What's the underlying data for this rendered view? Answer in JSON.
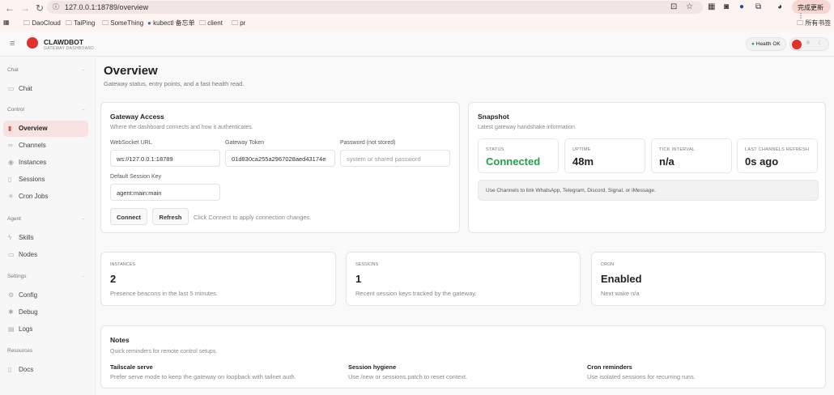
{
  "browser": {
    "url": "127.0.0.1:18789/overview",
    "update_label": "完成更新",
    "bookmarks": [
      "DaoCloud",
      "TaiPing",
      "SomeThing",
      "kubectl 备忘单",
      "client",
      "pr"
    ],
    "all_bookmarks": "所有书签"
  },
  "app": {
    "name": "CLAWDBOT",
    "tagline": "GATEWAY DASHBOARD",
    "health_label": "Health",
    "health_value": "OK",
    "health_color": "#22a34a",
    "accent": "#e0312a"
  },
  "sidebar": {
    "sections": [
      {
        "title": "Chat",
        "items": [
          {
            "label": "Chat",
            "icon": "message-icon"
          }
        ]
      },
      {
        "title": "Control",
        "items": [
          {
            "label": "Overview",
            "icon": "bar-chart-icon",
            "active": true
          },
          {
            "label": "Channels",
            "icon": "link-icon"
          },
          {
            "label": "Instances",
            "icon": "radio-icon"
          },
          {
            "label": "Sessions",
            "icon": "file-icon"
          },
          {
            "label": "Cron Jobs",
            "icon": "loader-icon"
          }
        ]
      },
      {
        "title": "Agent",
        "items": [
          {
            "label": "Skills",
            "icon": "zap-icon"
          },
          {
            "label": "Nodes",
            "icon": "monitor-icon"
          }
        ]
      },
      {
        "title": "Settings",
        "items": [
          {
            "label": "Config",
            "icon": "gear-icon"
          },
          {
            "label": "Debug",
            "icon": "bug-icon"
          },
          {
            "label": "Logs",
            "icon": "scroll-icon"
          }
        ]
      },
      {
        "title": "Resources",
        "items": [
          {
            "label": "Docs",
            "icon": "book-icon"
          }
        ]
      }
    ]
  },
  "page": {
    "title": "Overview",
    "subtitle": "Gateway status, entry points, and a fast health read."
  },
  "gateway": {
    "title": "Gateway Access",
    "subtitle": "Where the dashboard connects and how it authenticates.",
    "ws_label": "WebSocket URL",
    "ws_value": "ws://127.0.0.1:18789",
    "token_label": "Gateway Token",
    "token_value": "01d830ca255a2967028aed43174e",
    "password_label": "Password (not stored)",
    "password_placeholder": "system or shared password",
    "session_label": "Default Session Key",
    "session_value": "agent:main:main",
    "connect": "Connect",
    "refresh": "Refresh",
    "hint": "Click Connect to apply connection changes."
  },
  "snapshot": {
    "title": "Snapshot",
    "subtitle": "Latest gateway handshake information.",
    "stats": [
      {
        "label": "STATUS",
        "value": "Connected"
      },
      {
        "label": "UPTIME",
        "value": "48m"
      },
      {
        "label": "TICK INTERVAL",
        "value": "n/a"
      },
      {
        "label": "LAST CHANNELS REFRESH",
        "value": "0s ago"
      }
    ],
    "note": "Use Channels to link WhatsApp, Telegram, Discord, Signal, or iMessage."
  },
  "metrics": [
    {
      "label": "INSTANCES",
      "value": "2",
      "desc": "Presence beacons in the last 5 minutes."
    },
    {
      "label": "SESSIONS",
      "value": "1",
      "desc": "Recent session keys tracked by the gateway."
    },
    {
      "label": "CRON",
      "value": "Enabled",
      "desc": "Next wake n/a"
    }
  ],
  "notes": {
    "title": "Notes",
    "subtitle": "Quick reminders for remote control setups.",
    "items": [
      {
        "title": "Tailscale serve",
        "desc": "Prefer serve mode to keep the gateway on loopback with tailnet auth."
      },
      {
        "title": "Session hygiene",
        "desc": "Use /new or sessions.patch to reset context."
      },
      {
        "title": "Cron reminders",
        "desc": "Use isolated sessions for recurring runs."
      }
    ]
  }
}
